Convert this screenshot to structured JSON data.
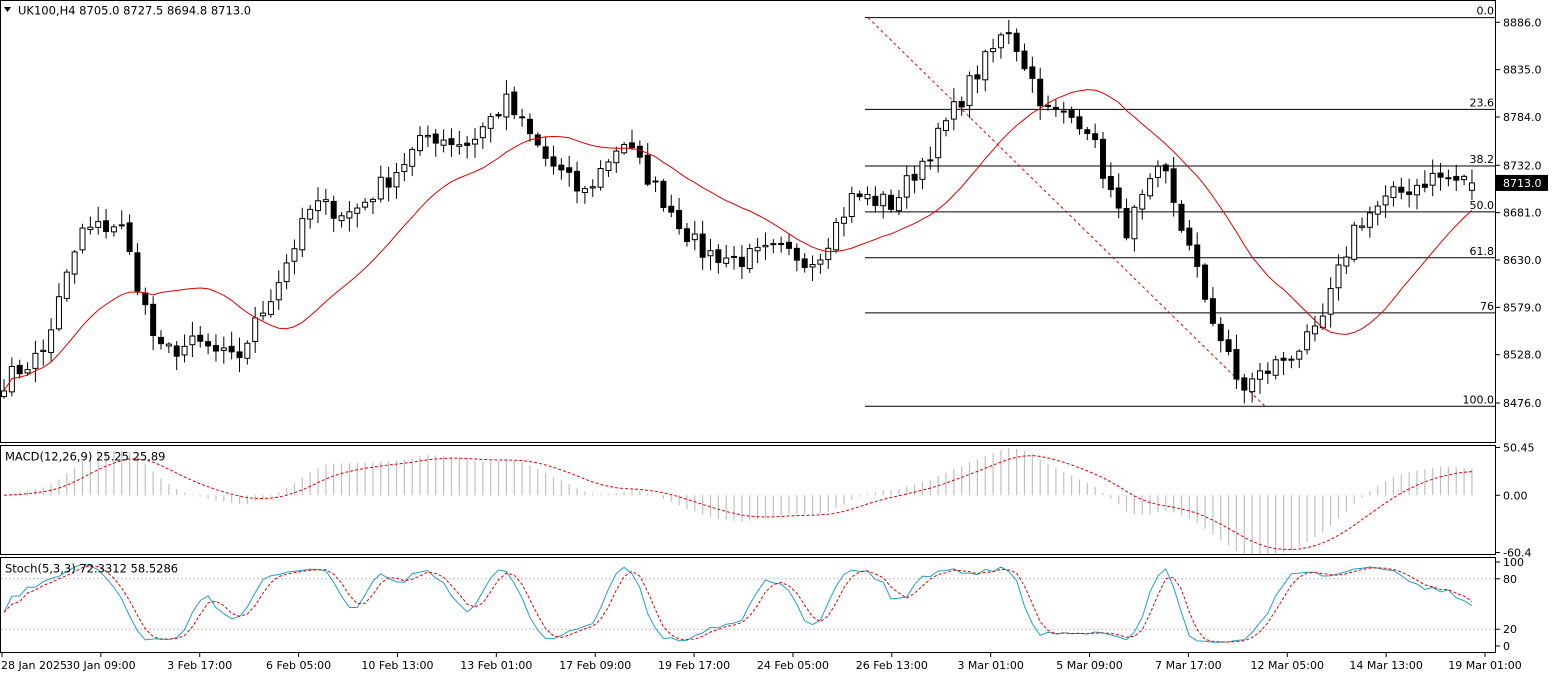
{
  "header": {
    "symbol_line": "UK100,H4  8705.0 8727.5 8694.8 8713.0",
    "menu_icon": "triangle-down-icon"
  },
  "main": {
    "price_axis_ticks": [
      "8886.0",
      "8835.0",
      "8784.0",
      "8732.0",
      "8681.0",
      "8630.0",
      "8579.0",
      "8528.0",
      "8476.0"
    ],
    "current_price_label": "8713.0",
    "price_range": [
      8434,
      8910
    ],
    "fib_levels": [
      {
        "label": "0.0",
        "price": 8891.0
      },
      {
        "label": "23.6",
        "price": 8792.2
      },
      {
        "label": "38.2",
        "price": 8731.2
      },
      {
        "label": "50.0",
        "price": 8681.8
      },
      {
        "label": "61.8",
        "price": 8632.4
      },
      {
        "label": "76",
        "price": 8573.0
      },
      {
        "label": "100.0",
        "price": 8472.5
      }
    ],
    "ma_label": ""
  },
  "macd": {
    "label": "MACD(12,26,9) 25.25 25.89",
    "axis_ticks": [
      "50.45",
      "0.00",
      "-60.4"
    ],
    "range": [
      -62,
      52
    ]
  },
  "stoch": {
    "label": "Stoch(5,3,3) 72.3312 58.5286",
    "axis_ticks": [
      "100",
      "80",
      "20",
      "0"
    ]
  },
  "time_axis": [
    "28 Jan 2025",
    "30 Jan 09:00",
    "3 Feb 17:00",
    "6 Feb 05:00",
    "10 Feb 13:00",
    "13 Feb 01:00",
    "17 Feb 09:00",
    "19 Feb 17:00",
    "24 Feb 05:00",
    "26 Feb 13:00",
    "3 Mar 01:00",
    "5 Mar 09:00",
    "7 Mar 17:00",
    "12 Mar 05:00",
    "14 Mar 13:00",
    "19 Mar 01:00"
  ],
  "colors": {
    "bull_fill": "#ffffff",
    "bear_fill": "#000000",
    "ma": "#e00000",
    "fib": "#000000",
    "fib_trend": "#e00000",
    "macd_hist": "#c0c0c0",
    "macd_signal": "#e00000",
    "stoch_main": "#20a0c8",
    "stoch_signal": "#e00000",
    "grid_level": "#c0c0c0"
  },
  "chart_data": {
    "type": "candlestick",
    "title": "UK100,H4",
    "last_ohlc": {
      "open": 8705.0,
      "high": 8727.5,
      "low": 8694.8,
      "close": 8713.0
    },
    "price_anchors": [
      {
        "date": "28 Jan 2025",
        "price": 8500
      },
      {
        "date": "29 Jan 2025",
        "price": 8530
      },
      {
        "date": "30 Jan 09:00",
        "price": 8660
      },
      {
        "date": "31 Jan 2025",
        "price": 8670
      },
      {
        "date": "3 Feb 2025",
        "price": 8530
      },
      {
        "date": "3 Feb 17:00",
        "price": 8540
      },
      {
        "date": "4 Feb 2025",
        "price": 8520
      },
      {
        "date": "5 Feb 2025",
        "price": 8600
      },
      {
        "date": "6 Feb 05:00",
        "price": 8690
      },
      {
        "date": "7 Feb 2025",
        "price": 8680
      },
      {
        "date": "10 Feb 2025",
        "price": 8720
      },
      {
        "date": "10 Feb 13:00",
        "price": 8765
      },
      {
        "date": "11 Feb 2025",
        "price": 8755
      },
      {
        "date": "12 Feb 2025",
        "price": 8800
      },
      {
        "date": "13 Feb 01:00",
        "price": 8740
      },
      {
        "date": "14 Feb 2025",
        "price": 8700
      },
      {
        "date": "17 Feb 09:00",
        "price": 8760
      },
      {
        "date": "18 Feb 2025",
        "price": 8700
      },
      {
        "date": "19 Feb 17:00",
        "price": 8640
      },
      {
        "date": "20 Feb 2025",
        "price": 8630
      },
      {
        "date": "21 Feb 2025",
        "price": 8640
      },
      {
        "date": "24 Feb 05:00",
        "price": 8630
      },
      {
        "date": "25 Feb 2025",
        "price": 8700
      },
      {
        "date": "26 Feb 13:00",
        "price": 8690
      },
      {
        "date": "27 Feb 2025",
        "price": 8750
      },
      {
        "date": "28 Feb 2025",
        "price": 8820
      },
      {
        "date": "3 Mar 01:00",
        "price": 8880
      },
      {
        "date": "4 Mar 2025",
        "price": 8790
      },
      {
        "date": "5 Mar 09:00",
        "price": 8780
      },
      {
        "date": "6 Mar 2025",
        "price": 8660
      },
      {
        "date": "7 Mar 17:00",
        "price": 8730
      },
      {
        "date": "10 Mar 2025",
        "price": 8600
      },
      {
        "date": "11 Mar 2025",
        "price": 8490
      },
      {
        "date": "12 Mar 05:00",
        "price": 8520
      },
      {
        "date": "13 Mar 2025",
        "price": 8550
      },
      {
        "date": "14 Mar 13:00",
        "price": 8670
      },
      {
        "date": "17 Mar 2025",
        "price": 8700
      },
      {
        "date": "18 Mar 2025",
        "price": 8720
      },
      {
        "date": "19 Mar 01:00",
        "price": 8713
      }
    ],
    "fibonacci": {
      "high": 8891.0,
      "low": 8472.5
    },
    "ylim": [
      8434,
      8910
    ]
  }
}
